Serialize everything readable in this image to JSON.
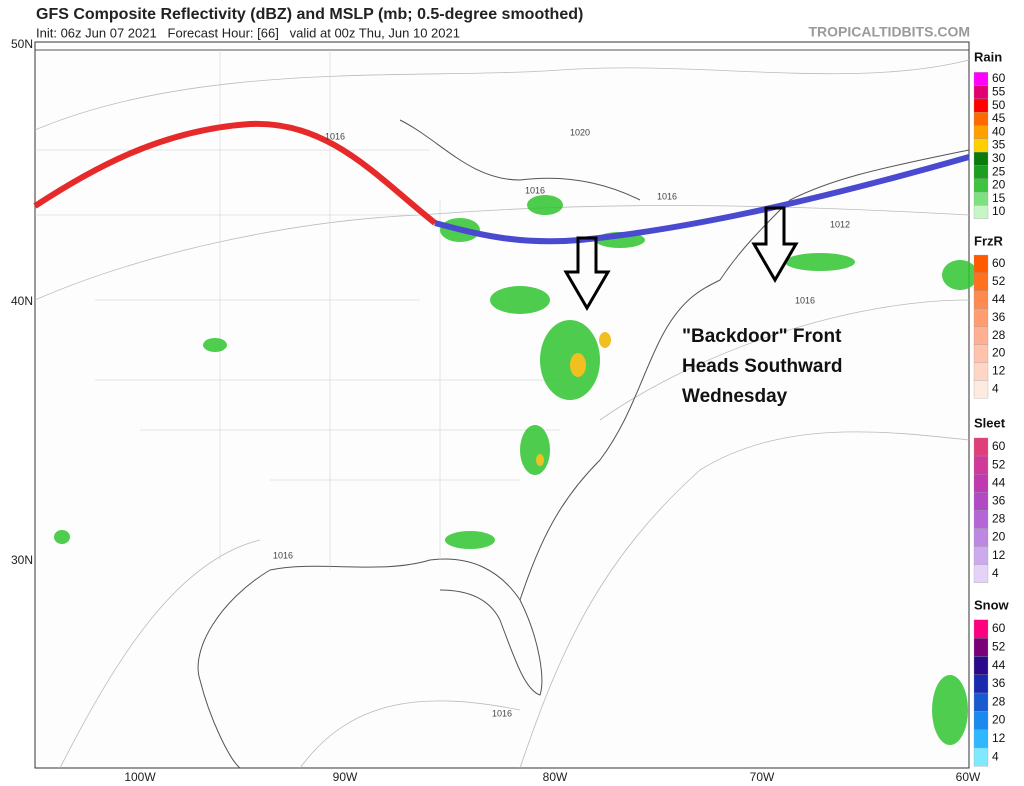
{
  "header": {
    "title": "GFS Composite Reflectivity (dBZ) and MSLP (mb; 0.5-degree smoothed)",
    "subtitle": "Init: 06z Jun 07 2021   Forecast Hour: [66]   valid at 00z Thu, Jun 10 2021",
    "watermark": "TROPICALTIDBITS.COM"
  },
  "map": {
    "lat_labels": [
      "50N",
      "40N",
      "30N"
    ],
    "lon_labels": [
      "100W",
      "90W",
      "80W",
      "70W",
      "60W"
    ],
    "contour_labels": [
      "1016",
      "1020",
      "1016",
      "1016",
      "1012",
      "1016",
      "1016",
      "1016"
    ],
    "annotation": [
      "\"Backdoor\" Front",
      "Heads Southward",
      "Wednesday"
    ]
  },
  "legend": [
    {
      "title": "Rain",
      "labels": [
        "60",
        "55",
        "50",
        "45",
        "40",
        "35",
        "30",
        "25",
        "20",
        "15",
        "10"
      ],
      "colors": [
        "#ff00ff",
        "#e0006f",
        "#ff0000",
        "#ff6a00",
        "#ff9f00",
        "#ffd000",
        "#0a7a0a",
        "#1e9e1e",
        "#3fc43f",
        "#7fe07f",
        "#c8f5c8"
      ]
    },
    {
      "title": "FrzR",
      "labels": [
        "60",
        "52",
        "44",
        "36",
        "28",
        "20",
        "12",
        "4"
      ],
      "colors": [
        "#ff5a00",
        "#ff7020",
        "#ff8a50",
        "#ff9c70",
        "#ffb090",
        "#ffc2aa",
        "#ffd6c6",
        "#ffeae0"
      ]
    },
    {
      "title": "Sleet",
      "labels": [
        "60",
        "52",
        "44",
        "36",
        "28",
        "20",
        "12",
        "4"
      ],
      "colors": [
        "#e0407a",
        "#d03a9a",
        "#c03ab0",
        "#b24ac6",
        "#b466d6",
        "#bc88e2",
        "#cdaaee",
        "#e4d2f8"
      ]
    },
    {
      "title": "Snow",
      "labels": [
        "60",
        "52",
        "44",
        "36",
        "28",
        "20",
        "12",
        "4"
      ],
      "colors": [
        "#ff0080",
        "#7a007a",
        "#2a0a8a",
        "#1a2ab0",
        "#1a5ad0",
        "#1a8aee",
        "#30b8ff",
        "#80e8ff"
      ]
    }
  ]
}
